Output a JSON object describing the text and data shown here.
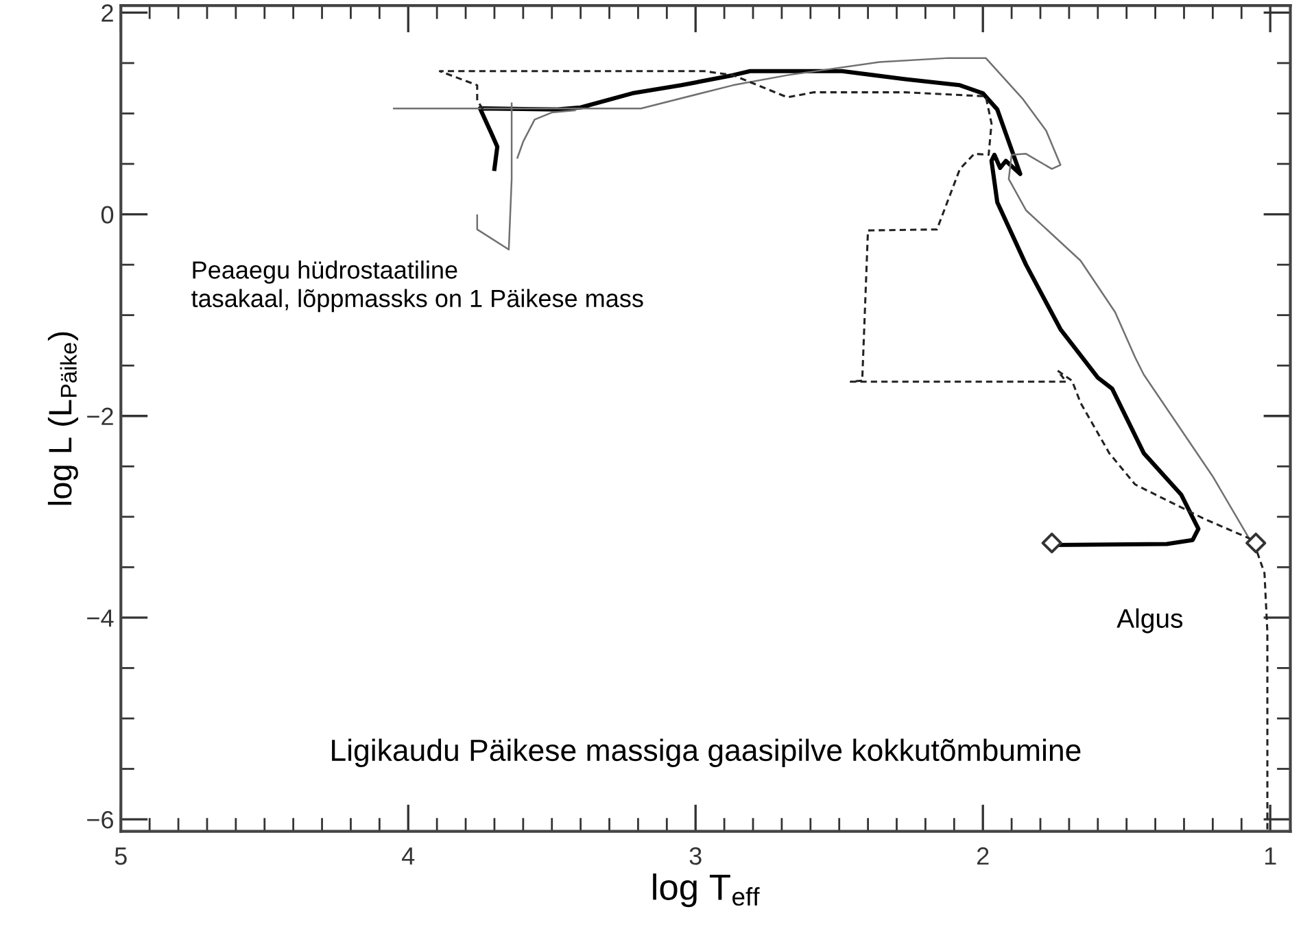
{
  "chart_data": {
    "type": "line",
    "xlabel": "log T$_{eff}$",
    "ylabel": "log L (L$_{Päike}$)",
    "xlim": [
      5,
      0.93
    ],
    "ylim": [
      -6.12,
      2.07
    ],
    "xticks": [
      5,
      4,
      3,
      2,
      1
    ],
    "yticks": [
      2,
      0,
      -2,
      -4,
      -6
    ],
    "annotations": [
      "Peaaegu hüdrostaatiline\ntasakaal, lõppmassks on 1 Päikese mass",
      "Algus",
      "Ligikaudu Päikese massiga gaasipilve kokkutõmbumine"
    ],
    "series": [
      {
        "color": "#000000",
        "line_style": "solid",
        "x": [
          1.76,
          1.36,
          1.27,
          1.25,
          1.31,
          1.44,
          1.55,
          1.6,
          1.73,
          1.85,
          1.95,
          1.97,
          1.96,
          1.94,
          1.92,
          1.87,
          1.92,
          1.95,
          2.0,
          2.08,
          2.27,
          2.49,
          2.81,
          2.87,
          3.05,
          3.22,
          3.4,
          3.48,
          3.75,
          3.71,
          3.69,
          3.7
        ],
        "values": [
          -3.28,
          -3.27,
          -3.23,
          -3.12,
          -2.78,
          -2.37,
          -1.73,
          -1.62,
          -1.14,
          -0.5,
          0.12,
          0.53,
          0.59,
          0.46,
          0.53,
          0.4,
          0.8,
          1.04,
          1.2,
          1.28,
          1.34,
          1.42,
          1.42,
          1.38,
          1.28,
          1.2,
          1.06,
          1.04,
          1.05,
          0.8,
          0.67,
          0.45
        ]
      },
      {
        "color": "#707070",
        "line_style": "solid",
        "x": [
          1.06,
          1.2,
          1.44,
          1.47,
          1.54,
          1.66,
          1.85,
          1.91,
          1.9,
          1.85,
          1.76,
          1.73,
          1.78,
          1.86,
          1.99,
          2.12,
          2.36,
          2.68,
          2.87,
          3.19,
          3.6,
          4.05,
          null,
          3.42,
          3.5,
          3.56,
          3.6,
          3.62,
          null,
          3.64,
          3.64,
          3.65,
          3.76,
          3.76
        ],
        "values": [
          -3.28,
          -2.6,
          -1.59,
          -1.42,
          -0.97,
          -0.46,
          0.04,
          0.35,
          0.59,
          0.6,
          0.45,
          0.49,
          0.83,
          1.14,
          1.55,
          1.55,
          1.51,
          1.38,
          1.28,
          1.05,
          1.05,
          1.05,
          null,
          1.03,
          1.01,
          0.94,
          0.72,
          0.56,
          null,
          1.1,
          0.35,
          -0.35,
          -0.15,
          -0.01
        ]
      },
      {
        "color": "#222222",
        "line_style": "dashed",
        "x": [
          1.01,
          1.01,
          1.02,
          1.06,
          1.23,
          1.47,
          1.56,
          1.66,
          1.69,
          1.74,
          1.71,
          2.46,
          2.42,
          2.4,
          2.16,
          2.08,
          2.03,
          1.98,
          1.97,
          1.99,
          2.27,
          2.59,
          2.68,
          2.87,
          2.97,
          3.89,
          3.76,
          3.76,
          3.74
        ],
        "values": [
          -6.1,
          -4.14,
          -3.56,
          -3.23,
          -3.02,
          -2.68,
          -2.37,
          -1.87,
          -1.65,
          -1.55,
          -1.66,
          -1.66,
          -1.65,
          -0.16,
          -0.15,
          0.45,
          0.6,
          0.59,
          0.9,
          1.17,
          1.21,
          1.21,
          1.16,
          1.38,
          1.42,
          1.42,
          1.28,
          1.13,
          1.04
        ]
      },
      {
        "type": "scatter",
        "marker": "diamond",
        "color": "#333333",
        "x": [
          1.76,
          1.05
        ],
        "values": [
          -3.26,
          -3.26
        ]
      }
    ]
  }
}
